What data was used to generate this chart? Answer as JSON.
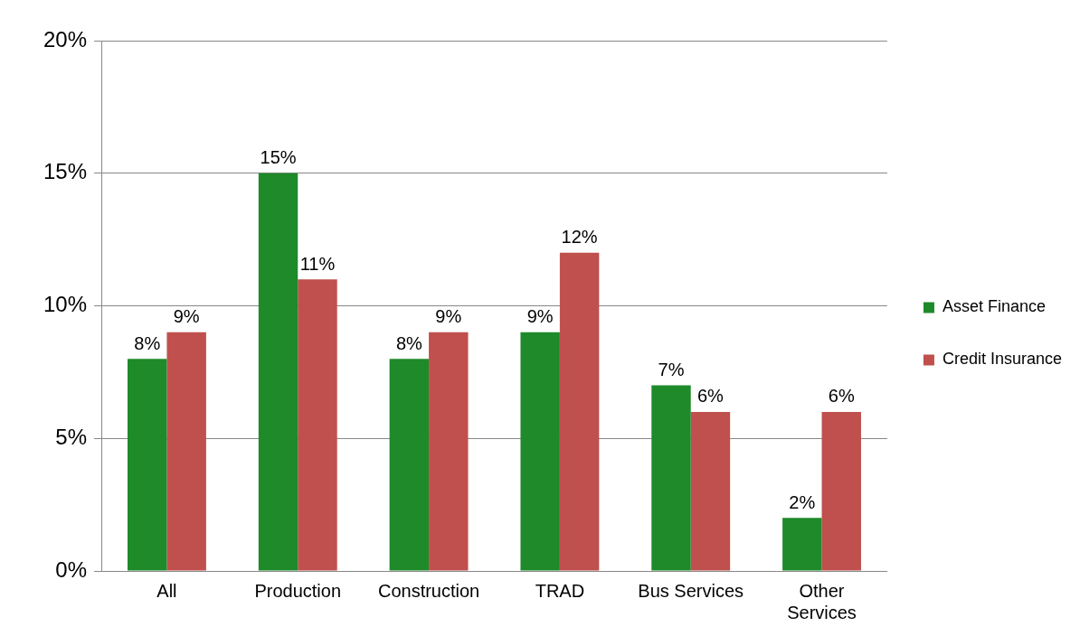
{
  "chart_data": {
    "type": "bar",
    "categories": [
      "All",
      "Production",
      "Construction",
      "TRAD",
      "Bus Services",
      "Other Services"
    ],
    "series": [
      {
        "name": "Asset Finance",
        "color": "#1e8a2a",
        "values": [
          8,
          15,
          8,
          9,
          7,
          2
        ],
        "value_labels": [
          "8%",
          "15%",
          "8%",
          "9%",
          "7%",
          "2%"
        ]
      },
      {
        "name": "Credit Insurance",
        "color": "#c0504d",
        "values": [
          9,
          11,
          9,
          12,
          6,
          6
        ],
        "value_labels": [
          "9%",
          "11%",
          "9%",
          "12%",
          "6%",
          "6%"
        ]
      }
    ],
    "ylim": [
      0,
      20
    ],
    "yticks": [
      {
        "value": 0,
        "label": "0%"
      },
      {
        "value": 5,
        "label": "5%"
      },
      {
        "value": 10,
        "label": "10%"
      },
      {
        "value": 15,
        "label": "15%"
      },
      {
        "value": 20,
        "label": "20%"
      }
    ],
    "grid": "y",
    "legend": "right"
  }
}
